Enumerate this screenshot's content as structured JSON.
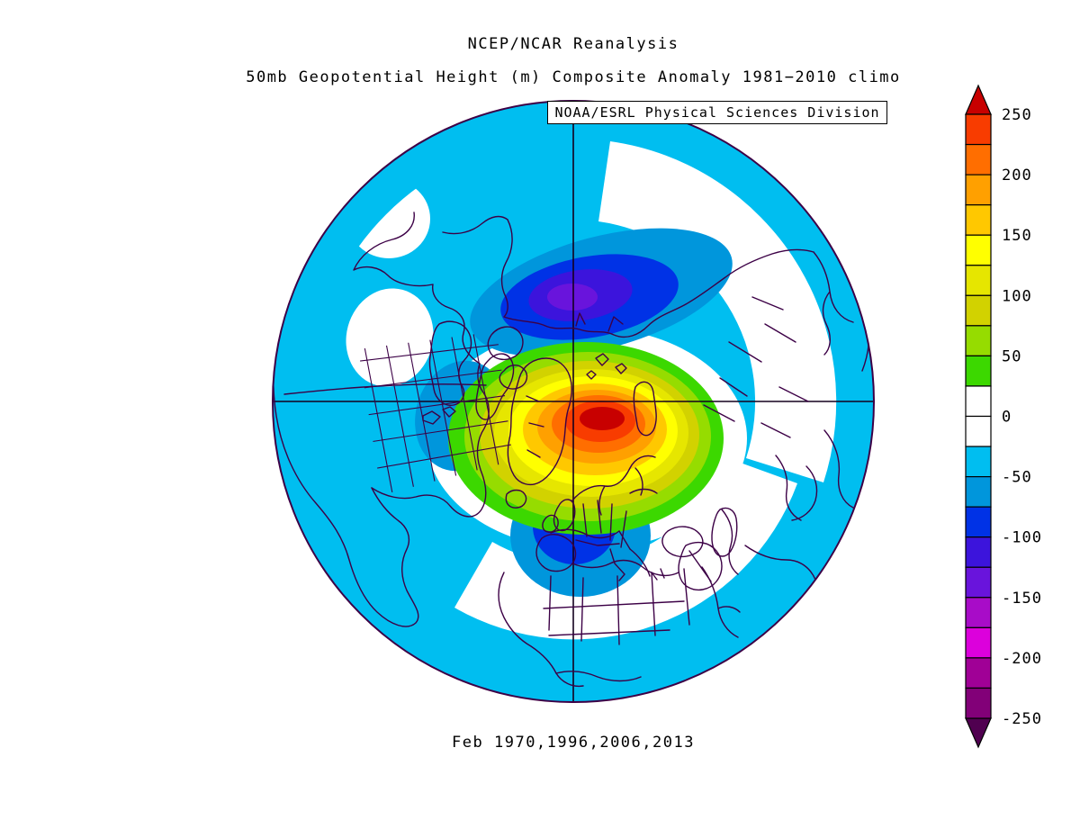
{
  "header": {
    "title": "NCEP/NCAR Reanalysis",
    "subtitle": "50mb Geopotential Height (m) Composite Anomaly 1981−2010 climo",
    "source_label": "NOAA/ESRL Physical Sciences Division"
  },
  "caption": "Feb 1970,1996,2006,2013",
  "colorbar": {
    "unit": "m",
    "tick_labels": [
      "250",
      "200",
      "150",
      "100",
      "50",
      "0",
      "-50",
      "-100",
      "-150",
      "-200",
      "-250"
    ],
    "arrow_top_color": "#C80000",
    "arrow_bottom_color": "#500050",
    "outline_color": "#000000",
    "bands": [
      {
        "from": 225,
        "to": 250,
        "color": "#F83C00"
      },
      {
        "from": 200,
        "to": 225,
        "color": "#FF6E00"
      },
      {
        "from": 175,
        "to": 200,
        "color": "#FFA000"
      },
      {
        "from": 150,
        "to": 175,
        "color": "#FFC800"
      },
      {
        "from": 125,
        "to": 150,
        "color": "#FFFF00"
      },
      {
        "from": 100,
        "to": 125,
        "color": "#E6E600"
      },
      {
        "from": 75,
        "to": 100,
        "color": "#D2D200"
      },
      {
        "from": 50,
        "to": 75,
        "color": "#96DC00"
      },
      {
        "from": 25,
        "to": 50,
        "color": "#3CD800"
      },
      {
        "from": 0,
        "to": 25,
        "color": "#FFFFFF"
      },
      {
        "from": -25,
        "to": 0,
        "color": "#FFFFFF"
      },
      {
        "from": -50,
        "to": -25,
        "color": "#00BEF0"
      },
      {
        "from": -75,
        "to": -50,
        "color": "#0096DC"
      },
      {
        "from": -100,
        "to": -75,
        "color": "#0032E6"
      },
      {
        "from": -125,
        "to": -100,
        "color": "#3C14DC"
      },
      {
        "from": -150,
        "to": -125,
        "color": "#6914DC"
      },
      {
        "from": -175,
        "to": -150,
        "color": "#A80CC8"
      },
      {
        "from": -200,
        "to": -175,
        "color": "#DC00DC"
      },
      {
        "from": -225,
        "to": -200,
        "color": "#A00096"
      },
      {
        "from": -250,
        "to": -225,
        "color": "#820078"
      }
    ]
  },
  "map": {
    "outline_color": "#3C0046",
    "coastline_color": "#3C0046",
    "grid_color": "#14001E"
  },
  "chart_data": {
    "type": "heatmap",
    "title": "NCEP/NCAR Reanalysis",
    "subtitle": "50mb Geopotential Height (m) Composite Anomaly 1981−2010 climo",
    "source": "NOAA/ESRL Physical Sciences Division",
    "composite_months": "Feb 1970,1996,2006,2013",
    "variable": "50mb Geopotential Height anomaly",
    "units": "m",
    "projection": "north polar stereographic, Northern Hemisphere",
    "contour_interval": 25,
    "colorbar_range": [
      -250,
      250
    ],
    "colorbar_tick_values": [
      250,
      200,
      150,
      100,
      50,
      0,
      -50,
      -100,
      -150,
      -200,
      -250
    ],
    "legend_position": "right vertical colorbar with end arrows",
    "features": [
      {
        "name": "positive anomaly",
        "location": "Arctic pole / Greenland–Franz Josef sector",
        "peak_value_m": 250,
        "note": "closed concentric rings from +25 (green) to >+250 (dark red core), elongated east-west across the pole"
      },
      {
        "name": "negative anomaly",
        "location": "central Siberia",
        "peak_value_m": -150,
        "note": "blue/violet core, bands -50 to -150"
      },
      {
        "name": "negative anomaly",
        "location": "western Europe (UK/France/Iberia)",
        "peak_value_m": -110,
        "note": "blue core with small blue-violet spot"
      },
      {
        "name": "negative patch",
        "location": "eastern United States",
        "peak_value_m": -60
      },
      {
        "name": "background field",
        "location": "most mid-latitudes and oceans",
        "value_m": "-25 to -50 (cyan), with white 0-bands over NW Canada, NE Pacific/Bering sector and Sahara/Middle East"
      }
    ]
  }
}
